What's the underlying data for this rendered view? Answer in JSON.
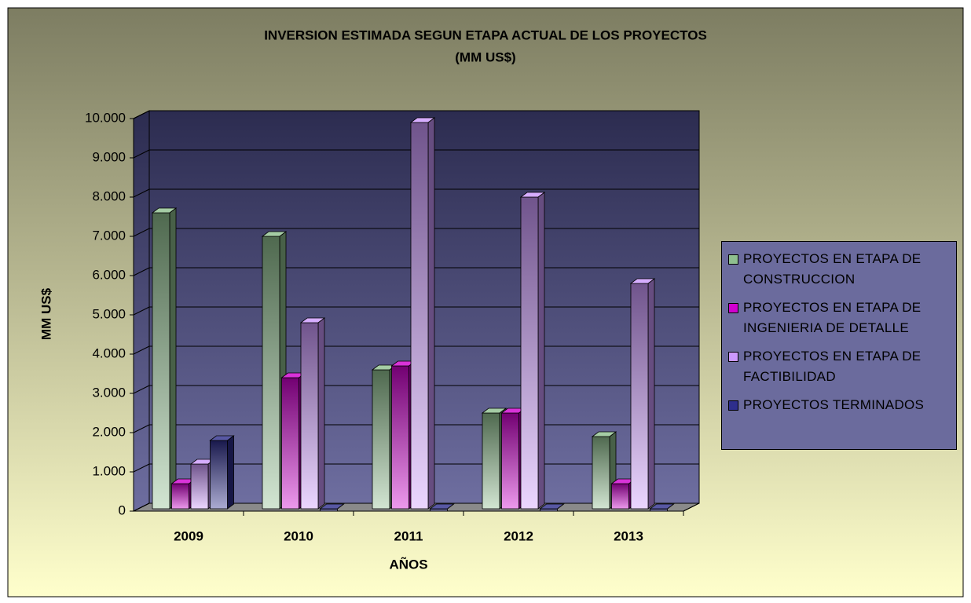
{
  "chart_data": {
    "type": "bar3d",
    "title": "INVERSION ESTIMADA SEGUN ETAPA ACTUAL DE LOS PROYECTOS",
    "subtitle": "(MM US$)",
    "x_label": "AÑOS",
    "y_label": "MM US$",
    "categories": [
      "2009",
      "2010",
      "2011",
      "2012",
      "2013"
    ],
    "series": [
      {
        "name": "PROYECTOS EN ETAPA DE CONSTRUCCION",
        "color": "#8fbf8f",
        "values": [
          7600,
          7000,
          3600,
          2500,
          1900
        ]
      },
      {
        "name": "PROYECTOS EN ETAPA DE INGENIERIA DE DETALLE",
        "color": "#d000d0",
        "values": [
          700,
          3400,
          3700,
          2500,
          700
        ]
      },
      {
        "name": "PROYECTOS EN ETAPA DE FACTIBILIDAD",
        "color": "#cc99ff",
        "values": [
          1200,
          4800,
          9900,
          8000,
          5800
        ]
      },
      {
        "name": "PROYECTOS TERMINADOS",
        "color": "#2e2e8c",
        "values": [
          1800,
          0,
          0,
          0,
          0
        ]
      }
    ],
    "ylim": [
      0,
      10000
    ],
    "yticks": [
      0,
      {
        "value": 1000,
        "label": "1.000"
      },
      {
        "value": 2000,
        "label": "2.000"
      },
      {
        "value": 3000,
        "label": "3.000"
      },
      {
        "value": 4000,
        "label": "4.000"
      },
      {
        "value": 5000,
        "label": "5.000"
      },
      {
        "value": 6000,
        "label": "6.000"
      },
      {
        "value": 7000,
        "label": "7.000"
      },
      {
        "value": 8000,
        "label": "8.000"
      },
      {
        "value": 9000,
        "label": "9.000"
      },
      {
        "value": 10000,
        "label": "10.000"
      }
    ],
    "grid": true,
    "legend": "right"
  }
}
